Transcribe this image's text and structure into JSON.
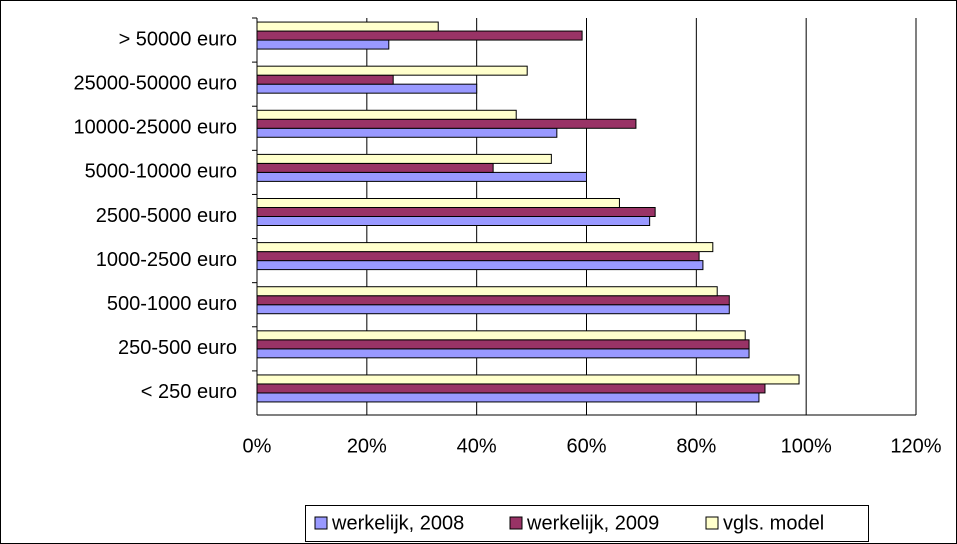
{
  "chart_data": {
    "type": "hbar",
    "categories": [
      "< 250 euro",
      "250-500 euro",
      "500-1000 euro",
      "1000-2500 euro",
      "2500-5000 euro",
      "5000-10000 euro",
      "10000-25000 euro",
      "25000-50000 euro",
      "> 50000 euro"
    ],
    "series": [
      {
        "name": "werkelijk, 2008",
        "color": "#9999ff",
        "values": [
          91.4,
          89.6,
          86,
          81.2,
          71.5,
          60,
          54.6,
          40,
          24
        ]
      },
      {
        "name": "werkelijk, 2009",
        "color": "#993366",
        "values": [
          92.5,
          89.6,
          86,
          80.5,
          72.5,
          43,
          69,
          24.8,
          59.2
        ]
      },
      {
        "name": "vgls. model",
        "color": "#ffffcc",
        "values": [
          98.7,
          88.9,
          83.8,
          83,
          66,
          53.6,
          47.2,
          49.2,
          33
        ]
      }
    ],
    "xlim": [
      0,
      120
    ],
    "xticks": [
      {
        "value": 0,
        "label": "0%"
      },
      {
        "value": 20,
        "label": "20%"
      },
      {
        "value": 40,
        "label": "40%"
      },
      {
        "value": 60,
        "label": "60%"
      },
      {
        "value": 80,
        "label": "80%"
      },
      {
        "value": 100,
        "label": "100%"
      },
      {
        "value": 120,
        "label": "120%"
      }
    ],
    "grid": true,
    "legend": "bottom"
  }
}
